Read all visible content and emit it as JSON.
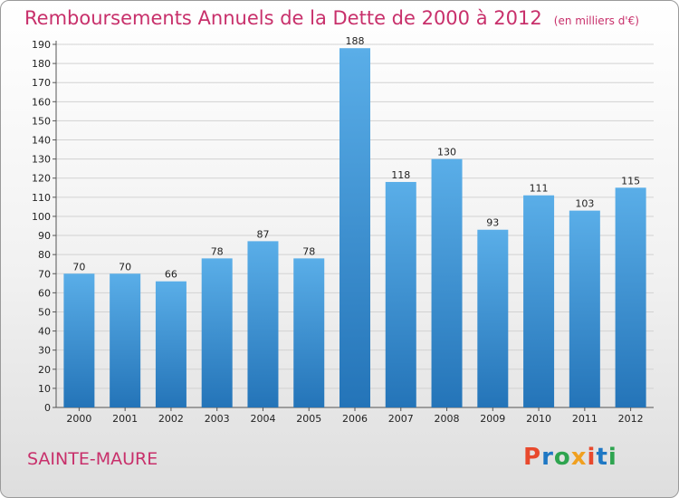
{
  "header": {
    "title": "Remboursements Annuels de la Dette de 2000 à 2012",
    "unit": "(en milliers d'€)"
  },
  "footer": {
    "city": "SAINTE-MAURE",
    "logo": "Proxiti"
  },
  "colors": {
    "title": "#c8306b",
    "bar_top": "#5aaee8",
    "bar_bottom": "#2474b8",
    "logo_letters": [
      "#e8492d",
      "#1f78c4",
      "#2ea44f",
      "#f0a020",
      "#e8492d",
      "#1f78c4",
      "#2ea44f"
    ]
  },
  "chart_data": {
    "type": "bar",
    "categories": [
      "2000",
      "2001",
      "2002",
      "2003",
      "2004",
      "2005",
      "2006",
      "2007",
      "2008",
      "2009",
      "2010",
      "2011",
      "2012"
    ],
    "values": [
      70,
      70,
      66,
      78,
      87,
      78,
      188,
      118,
      130,
      93,
      111,
      103,
      115
    ],
    "ylim": [
      0,
      190
    ],
    "yticks": [
      0,
      10,
      20,
      30,
      40,
      50,
      60,
      70,
      80,
      90,
      100,
      110,
      120,
      130,
      140,
      150,
      160,
      170,
      180,
      190
    ],
    "grid": true
  }
}
